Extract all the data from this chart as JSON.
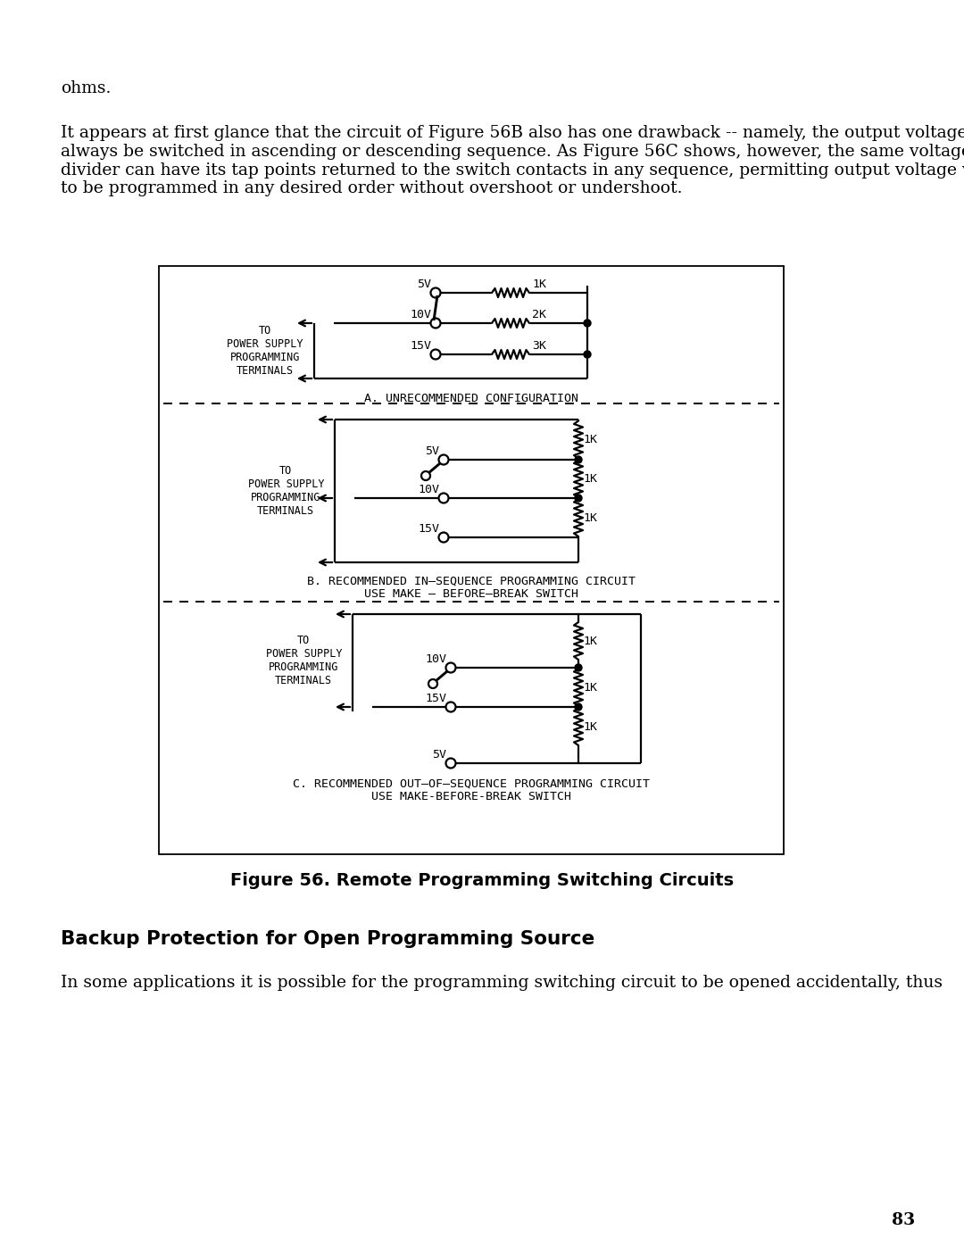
{
  "page_bg": "#ffffff",
  "text_color": "#000000",
  "body_text_1": "ohms.",
  "body_text_2": "It appears at first glance that the circuit of Figure 56B also has one drawback -- namely, the output voltage must\nalways be switched in ascending or descending sequence. As Figure 56C shows, however, the same voltage\ndivider can have its tap points returned to the switch contacts in any sequence, permitting output voltage values\nto be programmed in any desired order without overshoot or undershoot.",
  "figure_caption": "Figure 56. Remote Programming Switching Circuits",
  "section_title": "Backup Protection for Open Programming Source",
  "body_text_3": "In some applications it is possible for the programming switching circuit to be opened accidentally, thus",
  "page_number": "83",
  "label_A": "A. UNRECOMMENDED CONFIGURATION",
  "label_B_1": "B. RECOMMENDED IN–SEQUENCE PROGRAMMING CIRCUIT",
  "label_B_2": "USE MAKE – BEFORE–BREAK SWITCH",
  "label_C_1": "C. RECOMMENDED OUT–OF–SEQUENCE PROGRAMMING CIRCUIT",
  "label_C_2": "USE MAKE-BEFORE-BREAK SWITCH",
  "to_ps": "TO\nPOWER SUPPLY\nPROGRAMMING\nTERMINALS"
}
